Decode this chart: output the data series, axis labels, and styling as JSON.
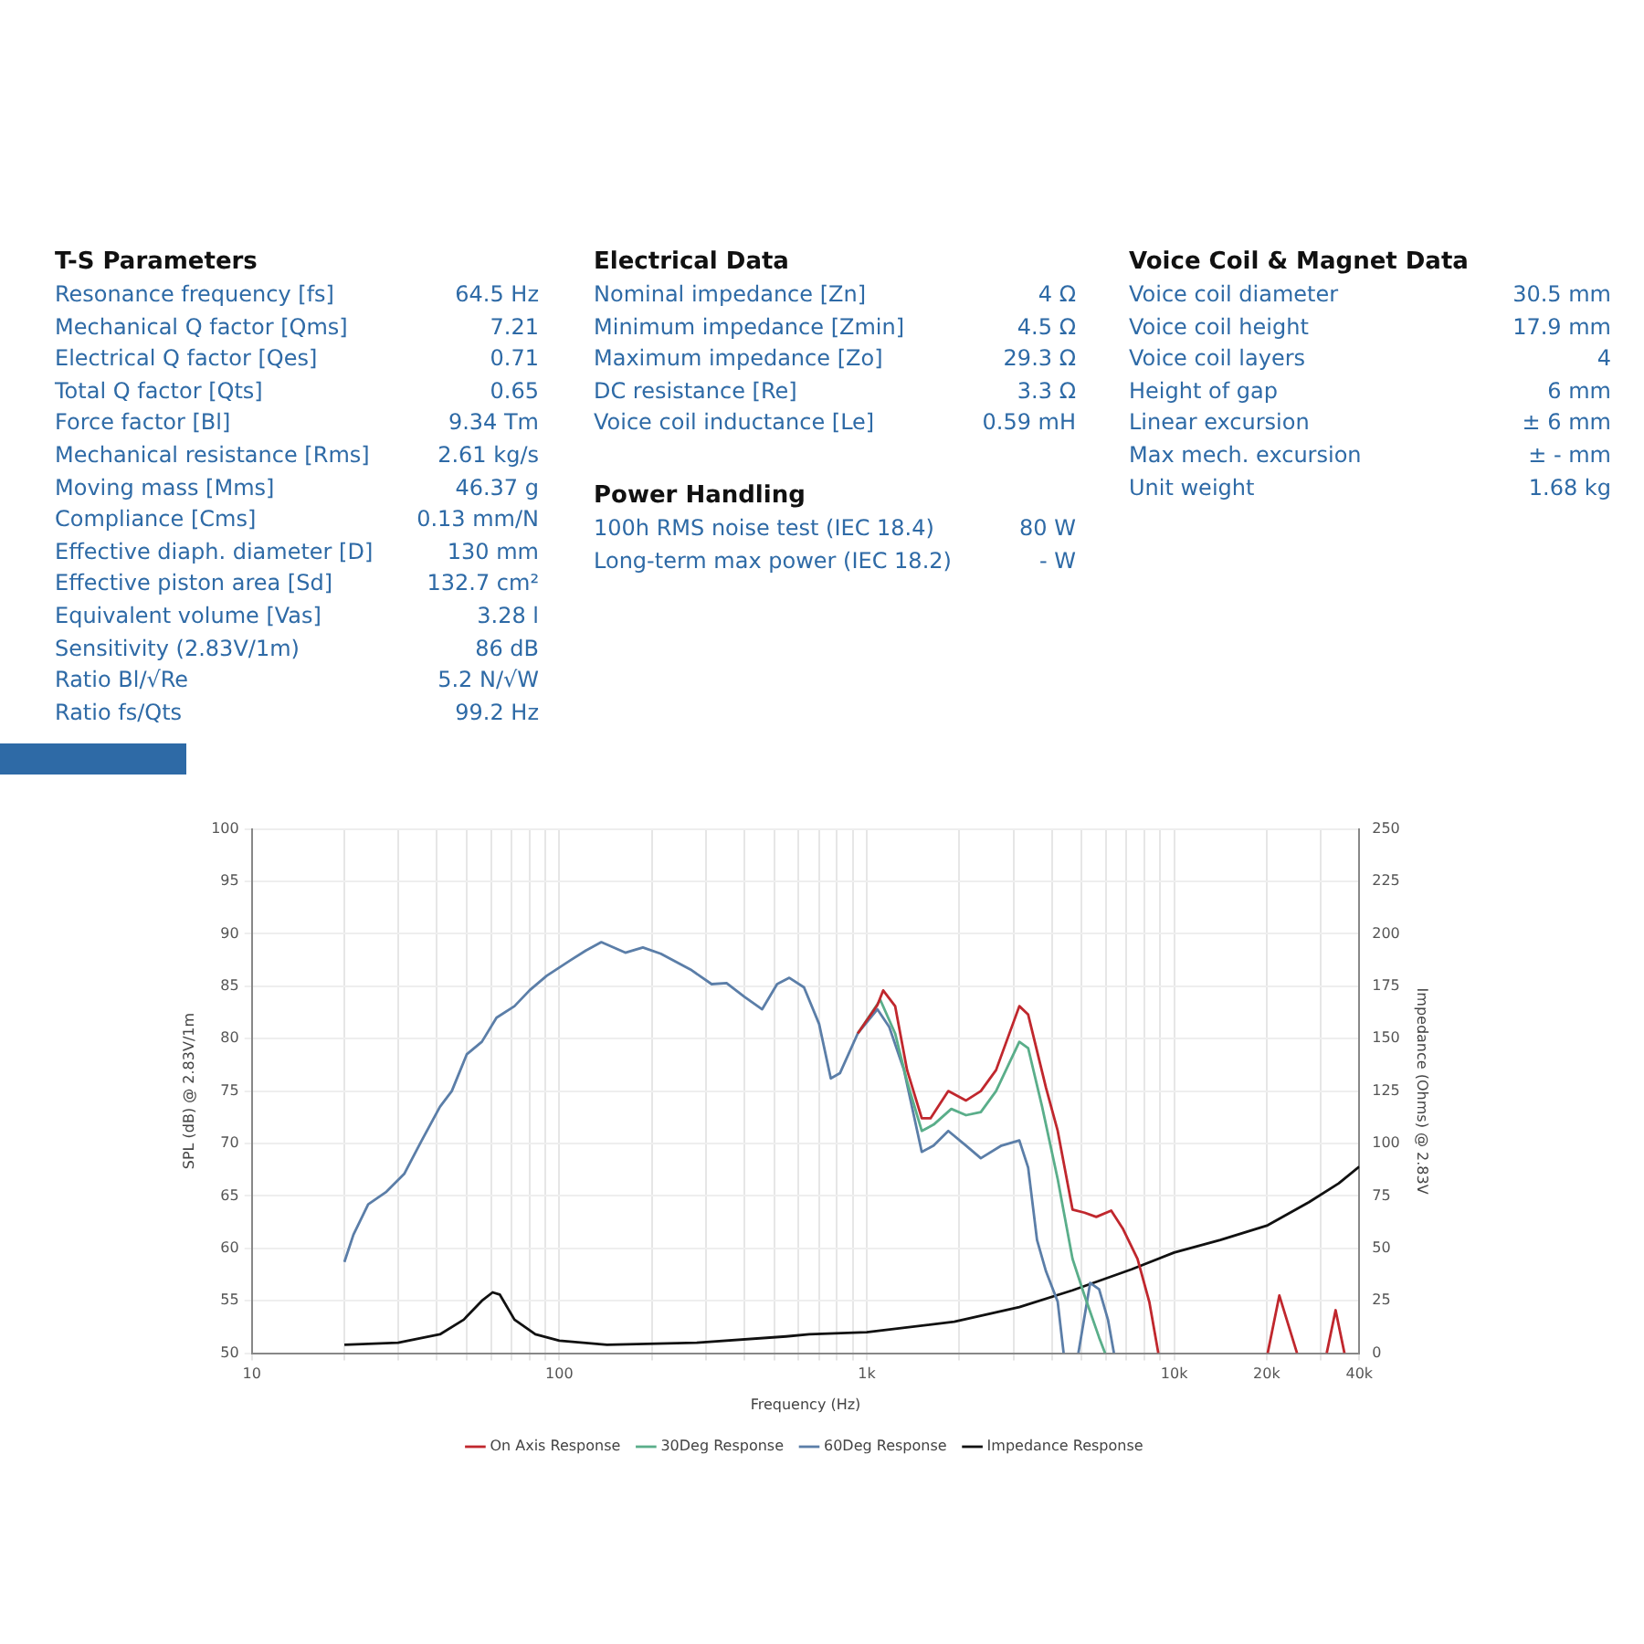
{
  "chart_data": [
    {
      "type": "other",
      "title": "T-S Parameters",
      "annotations": [
        "Resonance frequency [fs]",
        "64.5 Hz",
        "Mechanical Q factor [Qms]",
        "7.21",
        "Electrical Q factor [Qes]",
        "0.71",
        "Total Q factor [Qts]",
        "0.65",
        "Force factor [Bl]",
        "9.34 Tm",
        "Mechanical resistance [Rms]",
        "2.61 kg/s",
        "Moving mass [Mms]",
        "46.37 g",
        "Compliance [Cms]",
        "0.13 mm/N",
        "Effective diaph. diameter [D]",
        "130 mm",
        "Effective piston area [Sd]",
        "132.7 cm²",
        "Equivalent volume [Vas]",
        "3.28 l",
        "Sensitivity (2.83V/1m)",
        "86 dB",
        "Ratio Bl/√Re",
        "5.2 N/√W",
        "Ratio fs/Qts",
        "99.2 Hz"
      ]
    },
    {
      "type": "other",
      "title": "Electrical Data",
      "annotations": [
        "Nominal impedance [Zn]",
        "4 Ω",
        "Minimum impedance [Zmin]",
        "4.5 Ω",
        "Maximum impedance [Zo]",
        "29.3 Ω",
        "DC resistance [Re]",
        "3.3 Ω",
        "Voice coil inductance [Le]",
        "0.59 mH"
      ]
    },
    {
      "type": "other",
      "title": "Power Handling",
      "annotations": [
        "100h RMS noise test (IEC 18.4)",
        "80 W",
        "Long-term max power (IEC 18.2)",
        "- W"
      ]
    },
    {
      "type": "other",
      "title": "Voice Coil & Magnet Data",
      "annotations": [
        "Voice coil diameter",
        "30.5 mm",
        "Voice coil height",
        "17.9 mm",
        "Voice coil layers",
        "4",
        "Height of gap",
        "6 mm",
        "Linear excursion",
        "± 6 mm",
        "Max mech. excursion",
        "± - mm",
        "Unit weight",
        "1.68 kg"
      ]
    },
    {
      "type": "line",
      "xlabel": "Frequency (Hz)",
      "ylabel": "SPL (dB) @ 2.83V/1m",
      "y2label": "Impedance (Ohms) @ 2.83V",
      "log": "x",
      "grid": true,
      "legend": "bottom",
      "marker": "none",
      "xlim": [
        10,
        40000
      ],
      "xticks": [
        10,
        {
          "value": 20,
          "label": null
        },
        {
          "value": 30,
          "label": null
        },
        {
          "value": 40,
          "label": null
        },
        {
          "value": 50,
          "label": null
        },
        {
          "value": 60,
          "label": null
        },
        {
          "value": 70,
          "label": null
        },
        {
          "value": 80,
          "label": null
        },
        {
          "value": 90,
          "label": null
        },
        100,
        {
          "value": 200,
          "label": null
        },
        {
          "value": 300,
          "label": null
        },
        {
          "value": 400,
          "label": null
        },
        {
          "value": 500,
          "label": null
        },
        {
          "value": 600,
          "label": null
        },
        {
          "value": 700,
          "label": null
        },
        {
          "value": 800,
          "label": null
        },
        {
          "value": 900,
          "label": null
        },
        {
          "value": 1000,
          "label": "1k"
        },
        {
          "value": 2000,
          "label": null
        },
        {
          "value": 3000,
          "label": null
        },
        {
          "value": 4000,
          "label": null
        },
        {
          "value": 5000,
          "label": null
        },
        {
          "value": 6000,
          "label": null
        },
        {
          "value": 7000,
          "label": null
        },
        {
          "value": 8000,
          "label": null
        },
        {
          "value": 9000,
          "label": null
        },
        {
          "value": 10000,
          "label": "10k"
        },
        {
          "value": 20000,
          "label": "20k"
        },
        {
          "value": 30000,
          "label": null
        },
        {
          "value": 40000,
          "label": "40k"
        }
      ],
      "ylim": [
        50,
        100
      ],
      "yticks": [
        50,
        55,
        60,
        65,
        70,
        75,
        80,
        85,
        90,
        95,
        100
      ],
      "y2lim": [
        0,
        250
      ],
      "y2ticks": [
        0,
        25,
        50,
        75,
        100,
        125,
        150,
        175,
        200,
        225,
        250
      ],
      "series": [
        {
          "name": "On Axis Response",
          "color": "#c0272d",
          "x": [
            935,
            1083,
            1131,
            1237,
            1353,
            1510,
            1612,
            1842,
            2104,
            2350,
            2634,
            3136,
            3350,
            3830,
            4180,
            4670,
            5110,
            5580,
            6240,
            6800,
            7600,
            8300,
            8880,
            10000,
            20140,
            21980,
            25100,
            28000,
            31340,
            33500,
            35800
          ],
          "values": [
            80.5,
            83.2,
            84.6,
            83.1,
            77.0,
            72.4,
            72.4,
            75.0,
            74.1,
            75.0,
            77.0,
            83.1,
            82.3,
            75.3,
            71.2,
            63.7,
            63.4,
            63.0,
            63.6,
            61.9,
            59.0,
            54.9,
            50,
            null,
            50,
            55.5,
            50,
            null,
            50,
            54.1,
            50
          ]
        },
        {
          "name": "30Deg Response",
          "color": "#5aae8a",
          "x": [
            935,
            1107,
            1237,
            1353,
            1510,
            1650,
            1884,
            2104,
            2350,
            2634,
            3136,
            3350,
            3720,
            4180,
            4670,
            5110,
            5700,
            5960
          ],
          "values": [
            80.5,
            83.7,
            80.5,
            75.9,
            71.2,
            71.8,
            73.3,
            72.7,
            73.0,
            75.0,
            79.7,
            79.1,
            73.5,
            66.6,
            59.0,
            55.5,
            51.5,
            50
          ]
        },
        {
          "name": "60Deg Response",
          "color": "#5b7ea8",
          "x": [
            20,
            21.4,
            23.9,
            27.4,
            31.3,
            35.7,
            40.9,
            44.7,
            50,
            56,
            62.5,
            71.5,
            80,
            91,
            109,
            122,
            137,
            164,
            187,
            214,
            244,
            267,
            313,
            350,
            400,
            457,
            511,
            560,
            625,
            700,
            764,
            818,
            935,
            1083,
            1184,
            1322,
            1510,
            1650,
            1842,
            2104,
            2350,
            2743,
            3136,
            3350,
            3580,
            3830,
            4180,
            4370,
            4600,
            4880,
            5330,
            5700,
            6090,
            6370
          ],
          "values": [
            58.7,
            61.3,
            64.2,
            65.4,
            67.1,
            70.3,
            73.5,
            75.0,
            78.5,
            79.7,
            82.0,
            83.1,
            84.6,
            86.0,
            87.5,
            88.4,
            89.2,
            88.2,
            88.7,
            88.1,
            87.2,
            86.6,
            85.2,
            85.3,
            84.0,
            82.8,
            85.2,
            85.8,
            84.9,
            81.4,
            76.2,
            76.7,
            80.5,
            82.8,
            81.1,
            77.0,
            69.2,
            69.8,
            71.2,
            69.8,
            68.6,
            69.8,
            70.3,
            67.7,
            60.8,
            57.8,
            54.9,
            50,
            null,
            50,
            56.7,
            56.1,
            53.2,
            50
          ]
        },
        {
          "name": "Impedance Response",
          "color": "#111111",
          "axis": "y2",
          "x": [
            20,
            29.9,
            40.9,
            48.9,
            56,
            60.7,
            64,
            71.5,
            83.6,
            100,
            143,
            280,
            547,
            650,
            1000,
            1926,
            3136,
            4670,
            7270,
            10000,
            14130,
            20140,
            27440,
            34300,
            40000
          ],
          "values": [
            4,
            5,
            9,
            16,
            25,
            29,
            28,
            16,
            9,
            6,
            4,
            5,
            8,
            9,
            10,
            15,
            22,
            30,
            40,
            48,
            54,
            61,
            72,
            81,
            89
          ]
        }
      ]
    }
  ]
}
